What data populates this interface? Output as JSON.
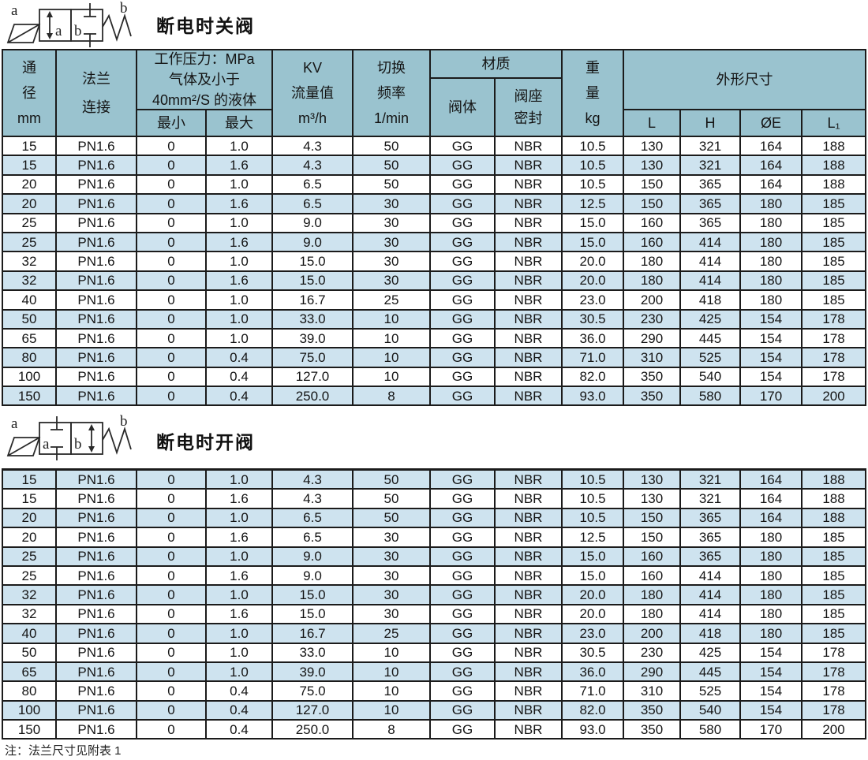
{
  "colors": {
    "header_bg": "#9ac3cf",
    "stripe_bg": "#cee3ef",
    "border": "#1b1b1b"
  },
  "sections": [
    {
      "title": "断电时关阀",
      "symbol": {
        "coil_label": "a",
        "spring_label": "b",
        "box_left_label": "a",
        "box_right_label": "b"
      }
    },
    {
      "title": "断电时开阀",
      "symbol": {
        "coil_label": "a",
        "spring_label": "b",
        "box_left_label": "a",
        "box_right_label": "b"
      }
    }
  ],
  "table_header": {
    "diameter": "通\n径\nmm",
    "flange": "法兰\n连接",
    "pressure_group": "工作压力：MPa\n气体及小于\n40mm²/S 的液体",
    "pressure_min": "最小",
    "pressure_max": "最大",
    "kv": "KV\n流量值\nm³/h",
    "frequency": "切换\n频率\n1/min",
    "material_group": "材质",
    "material_body": "阀体",
    "material_seat": "阀座\n密封",
    "weight": "重\n量\nkg",
    "dimensions_group": "外形尺寸",
    "dim_l": "L",
    "dim_h": "H",
    "dim_oe": "ØE",
    "dim_l1": "L₁"
  },
  "rows": [
    [
      "15",
      "PN1.6",
      "0",
      "1.0",
      "4.3",
      "50",
      "GG",
      "NBR",
      "10.5",
      "130",
      "321",
      "164",
      "188"
    ],
    [
      "15",
      "PN1.6",
      "0",
      "1.6",
      "4.3",
      "50",
      "GG",
      "NBR",
      "10.5",
      "130",
      "321",
      "164",
      "188"
    ],
    [
      "20",
      "PN1.6",
      "0",
      "1.0",
      "6.5",
      "50",
      "GG",
      "NBR",
      "10.5",
      "150",
      "365",
      "164",
      "188"
    ],
    [
      "20",
      "PN1.6",
      "0",
      "1.6",
      "6.5",
      "30",
      "GG",
      "NBR",
      "12.5",
      "150",
      "365",
      "180",
      "185"
    ],
    [
      "25",
      "PN1.6",
      "0",
      "1.0",
      "9.0",
      "30",
      "GG",
      "NBR",
      "15.0",
      "160",
      "365",
      "180",
      "185"
    ],
    [
      "25",
      "PN1.6",
      "0",
      "1.6",
      "9.0",
      "30",
      "GG",
      "NBR",
      "15.0",
      "160",
      "414",
      "180",
      "185"
    ],
    [
      "32",
      "PN1.6",
      "0",
      "1.0",
      "15.0",
      "30",
      "GG",
      "NBR",
      "20.0",
      "180",
      "414",
      "180",
      "185"
    ],
    [
      "32",
      "PN1.6",
      "0",
      "1.6",
      "15.0",
      "30",
      "GG",
      "NBR",
      "20.0",
      "180",
      "414",
      "180",
      "185"
    ],
    [
      "40",
      "PN1.6",
      "0",
      "1.0",
      "16.7",
      "25",
      "GG",
      "NBR",
      "23.0",
      "200",
      "418",
      "180",
      "185"
    ],
    [
      "50",
      "PN1.6",
      "0",
      "1.0",
      "33.0",
      "10",
      "GG",
      "NBR",
      "30.5",
      "230",
      "425",
      "154",
      "178"
    ],
    [
      "65",
      "PN1.6",
      "0",
      "1.0",
      "39.0",
      "10",
      "GG",
      "NBR",
      "36.0",
      "290",
      "445",
      "154",
      "178"
    ],
    [
      "80",
      "PN1.6",
      "0",
      "0.4",
      "75.0",
      "10",
      "GG",
      "NBR",
      "71.0",
      "310",
      "525",
      "154",
      "178"
    ],
    [
      "100",
      "PN1.6",
      "0",
      "0.4",
      "127.0",
      "10",
      "GG",
      "NBR",
      "82.0",
      "350",
      "540",
      "154",
      "178"
    ],
    [
      "150",
      "PN1.6",
      "0",
      "0.4",
      "250.0",
      "8",
      "GG",
      "NBR",
      "93.0",
      "350",
      "580",
      "170",
      "200"
    ]
  ],
  "note": "注：法兰尺寸见附表 1"
}
